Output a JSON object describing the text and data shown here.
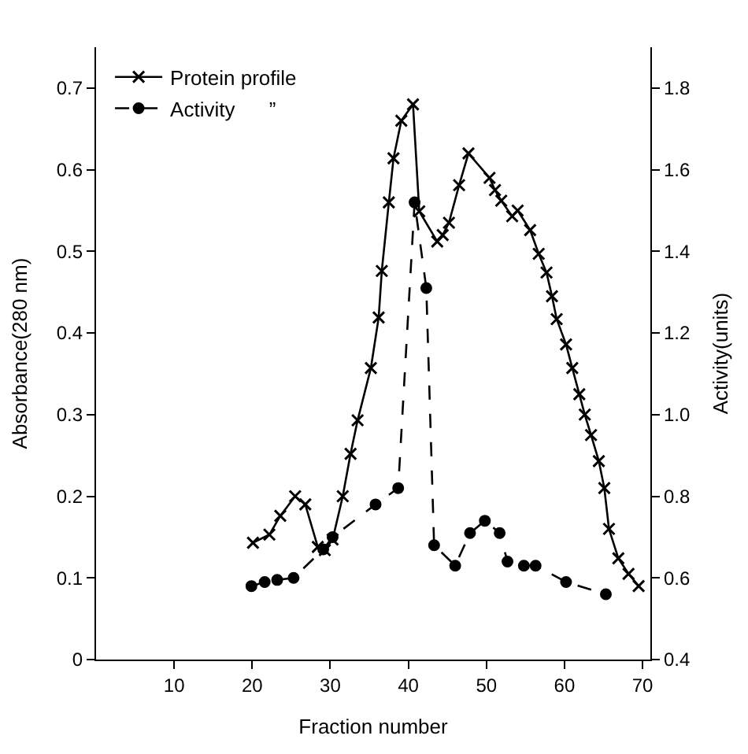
{
  "chart_data": {
    "type": "line",
    "xlabel": "Fraction number",
    "ylabel": "Absorbance(280 nm)",
    "y2label": "Activity(units)",
    "xlim": [
      0,
      71
    ],
    "xticks": [
      10,
      20,
      30,
      40,
      50,
      60,
      70
    ],
    "ylim": [
      0,
      0.75
    ],
    "yticks": [
      0,
      0.1,
      0.2,
      0.3,
      0.4,
      0.5,
      0.6,
      0.7
    ],
    "y2lim": [
      0.4,
      1.9
    ],
    "y2ticks": [
      0.4,
      0.6,
      0.8,
      {
        "value": 1.0,
        "label": "1.0"
      },
      1.2,
      1.4,
      1.6,
      1.8
    ],
    "legend": "top left",
    "series": [
      {
        "name": "Protein profile",
        "color": "#000000",
        "marker": "cross",
        "line_style": "solid",
        "x": [
          20.1,
          22.2,
          23.6,
          25.5,
          26.8,
          28.4,
          29.3,
          30.3,
          31.6,
          32.6,
          33.5,
          35.2,
          36.2,
          36.6,
          37.5,
          38.1,
          39.1,
          40.6,
          41.4,
          43.7,
          44.4,
          45.2,
          46.5,
          47.7,
          50.4,
          51.1,
          51.9,
          53.3,
          54,
          55.6,
          56.7,
          57.7,
          58.4,
          59,
          60.2,
          61,
          61.9,
          62.6,
          63.4,
          64.4,
          65.1,
          65.7,
          66.9,
          68.2,
          69.5
        ],
        "values": [
          0.143,
          0.153,
          0.176,
          0.2,
          0.19,
          0.138,
          0.134,
          0.147,
          0.2,
          0.252,
          0.293,
          0.357,
          0.419,
          0.476,
          0.56,
          0.614,
          0.66,
          0.68,
          0.549,
          0.512,
          0.52,
          0.535,
          0.581,
          0.62,
          0.59,
          0.575,
          0.562,
          0.543,
          0.55,
          0.526,
          0.497,
          0.474,
          0.445,
          0.417,
          0.386,
          0.357,
          0.325,
          0.3,
          0.275,
          0.243,
          0.21,
          0.16,
          0.124,
          0.105,
          0.09
        ]
      },
      {
        "name": "Activity      ”",
        "color": "#000000",
        "marker": "circle",
        "line_style": "dashed",
        "axis": "y2",
        "x": [
          19.9,
          21.6,
          23.2,
          25.3,
          29.1,
          30.3,
          35.8,
          38.7,
          40.8,
          42.3,
          43.3,
          46,
          47.9,
          49.8,
          51.7,
          52.7,
          54.8,
          56.3,
          60.2,
          65.3
        ],
        "values": [
          0.58,
          0.59,
          0.595,
          0.6,
          0.67,
          0.7,
          0.78,
          0.82,
          1.52,
          1.31,
          0.68,
          0.63,
          0.71,
          0.74,
          0.71,
          0.64,
          0.63,
          0.63,
          0.59,
          0.56
        ]
      }
    ]
  }
}
